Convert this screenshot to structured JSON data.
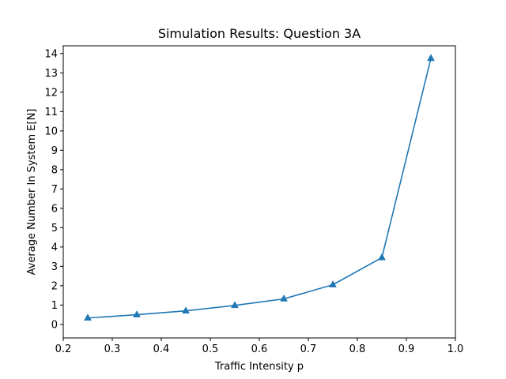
{
  "chart_data": {
    "type": "line",
    "title": "Simulation Results: Question 3A",
    "xlabel": "Traffic Intensity p",
    "ylabel": "Average Number In System E[N]",
    "xlim": [
      0.2,
      1.0
    ],
    "ylim": [
      -0.7,
      14.4
    ],
    "xticks": [
      0.2,
      0.3,
      0.4,
      0.5,
      0.6,
      0.7,
      0.8,
      0.9,
      1.0
    ],
    "xtick_labels": [
      "0.2",
      "0.3",
      "0.4",
      "0.5",
      "0.6",
      "0.7",
      "0.8",
      "0.9",
      "1.0"
    ],
    "yticks": [
      0,
      1,
      2,
      3,
      4,
      5,
      6,
      7,
      8,
      9,
      10,
      11,
      12,
      13,
      14
    ],
    "ytick_labels": [
      "0",
      "1",
      "2",
      "3",
      "4",
      "5",
      "6",
      "7",
      "8",
      "9",
      "10",
      "11",
      "12",
      "13",
      "14"
    ],
    "grid": false,
    "legend": "none",
    "series": [
      {
        "x": [
          0.25,
          0.35,
          0.45,
          0.55,
          0.65,
          0.75,
          0.85,
          0.95
        ],
        "y": [
          0.33,
          0.5,
          0.7,
          0.98,
          1.32,
          2.05,
          3.45,
          13.75
        ],
        "marker": "triangle-up",
        "color": "#1f77b4"
      }
    ]
  }
}
